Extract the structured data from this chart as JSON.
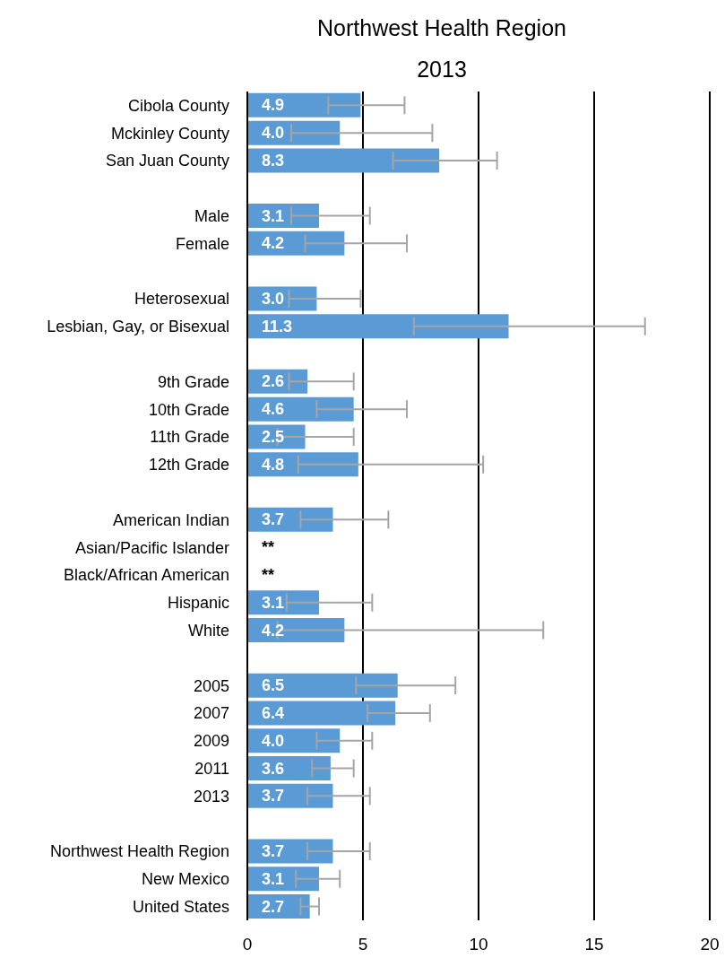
{
  "chart_data": {
    "type": "bar",
    "orientation": "horizontal",
    "title": "Northwest Health Region",
    "subtitle": "2013",
    "categories": [
      "Cibola County",
      "Mckinley County",
      "San Juan County",
      null,
      "Male",
      "Female",
      null,
      "Heterosexual",
      "Lesbian, Gay, or Bisexual",
      null,
      "9th Grade",
      "10th Grade",
      "11th Grade",
      "12th Grade",
      null,
      "American Indian",
      "Asian/Pacific Islander",
      "Black/African American",
      "Hispanic",
      "White",
      null,
      "2005",
      "2007",
      "2009",
      "2011",
      "2013",
      null,
      "Northwest Health Region",
      "New Mexico",
      "United States"
    ],
    "values": [
      4.9,
      4.0,
      8.3,
      null,
      3.1,
      4.2,
      null,
      3.0,
      11.3,
      null,
      2.6,
      4.6,
      2.5,
      4.8,
      null,
      3.7,
      null,
      null,
      3.1,
      4.2,
      null,
      6.5,
      6.4,
      4.0,
      3.6,
      3.7,
      null,
      3.7,
      3.1,
      2.7
    ],
    "value_labels": [
      "4.9",
      "4.0",
      "8.3",
      null,
      "3.1",
      "4.2",
      null,
      "3.0",
      "11.3",
      null,
      "2.6",
      "4.6",
      "2.5",
      "4.8",
      null,
      "3.7",
      "**",
      "**",
      "3.1",
      "4.2",
      null,
      "6.5",
      "6.4",
      "4.0",
      "3.6",
      "3.7",
      null,
      "3.7",
      "3.1",
      "2.7"
    ],
    "errors": [
      [
        3.5,
        6.8
      ],
      [
        1.9,
        8.0
      ],
      [
        6.3,
        10.8
      ],
      null,
      [
        1.9,
        5.3
      ],
      [
        2.5,
        6.9
      ],
      null,
      [
        1.8,
        4.9
      ],
      [
        7.2,
        17.2
      ],
      null,
      [
        1.8,
        4.6
      ],
      [
        3.0,
        6.9
      ],
      [
        1.3,
        4.6
      ],
      [
        2.2,
        10.2
      ],
      null,
      [
        2.3,
        6.1
      ],
      null,
      null,
      [
        1.7,
        5.4
      ],
      [
        1.3,
        12.8
      ],
      null,
      [
        4.7,
        9.0
      ],
      [
        5.2,
        7.9
      ],
      [
        3.0,
        5.4
      ],
      [
        2.8,
        4.6
      ],
      [
        2.6,
        5.3
      ],
      null,
      [
        2.6,
        5.3
      ],
      [
        2.1,
        4.0
      ],
      [
        2.3,
        3.1
      ]
    ],
    "color": "#5b9bd5",
    "xlim": [
      0,
      20
    ],
    "xticks": [
      0,
      5,
      10,
      15,
      20
    ],
    "grid": "x"
  }
}
